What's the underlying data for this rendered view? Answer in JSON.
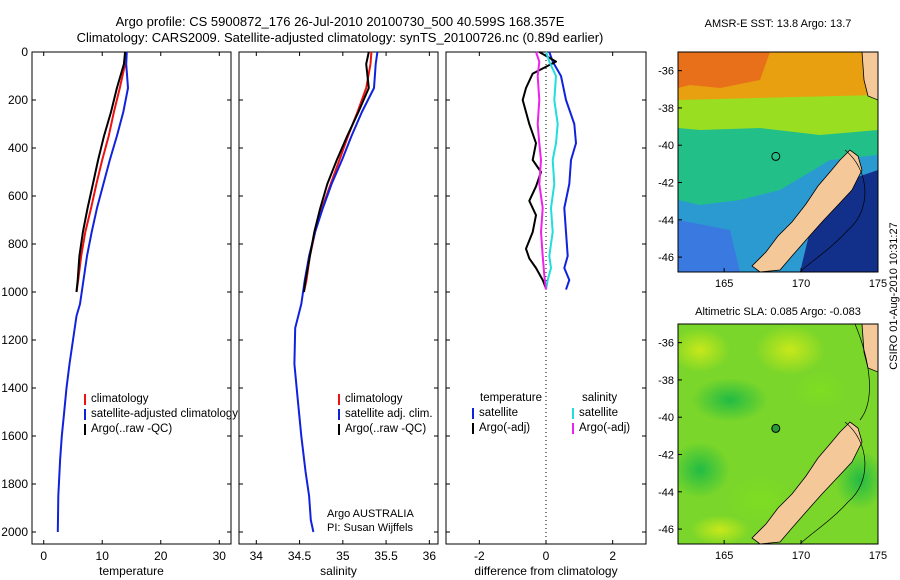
{
  "title": {
    "line1": "Argo profile: CS 5900872_176 26-Jul-2010 20100730_500 40.599S 168.357E",
    "line2": "Climatology: CARS2009. Satellite-adjusted climatology: synTS_20100726.nc (0.89d earlier)"
  },
  "colors": {
    "red": "#ee1111",
    "blue": "#1122dd",
    "black": "#000000",
    "cyan": "#22dddd",
    "magenta": "#ee22ee",
    "land": "#f5c89a"
  },
  "panels": {
    "temperature": {
      "xlabel": "temperature",
      "legend": [
        "climatology",
        "satellite-adjusted climatology",
        "Argo(..raw -QC)"
      ]
    },
    "salinity": {
      "xlabel": "salinity",
      "legend": [
        "climatology",
        "satellite adj. clim.",
        "Argo(..raw -QC)"
      ],
      "credit_line1": "Argo AUSTRALIA",
      "credit_line2": "PI: Susan Wijffels"
    },
    "difference": {
      "xlabel": "difference from climatology",
      "legend_left_header": "temperature",
      "legend_left": [
        "satellite",
        "Argo(-adj)"
      ],
      "legend_right_header": "salinity",
      "legend_right": [
        "satellite",
        "Argo(-adj)"
      ]
    }
  },
  "maps": {
    "sst_title": "AMSR-E SST: 13.8 Argo: 13.7",
    "sla_title": "Altimetric SLA: 0.085 Argo: -0.083",
    "lon_ticks": [
      "165",
      "170",
      "175"
    ],
    "lat_ticks": [
      "-36",
      "-38",
      "-40",
      "-42",
      "-44",
      "-46"
    ],
    "float_position": {
      "lon": 168.357,
      "lat": -40.599
    }
  },
  "stamp": "CSIRO 01-Aug-2010 10:31:27",
  "chart_data": [
    {
      "type": "line",
      "title": "",
      "xlabel": "temperature",
      "ylabel": "",
      "xlim": [
        -2,
        32
      ],
      "ylim": [
        2050,
        0
      ],
      "xticks": [
        0,
        10,
        20,
        30
      ],
      "yticks": [
        0,
        200,
        400,
        600,
        800,
        1000,
        1200,
        1400,
        1600,
        1800,
        2000
      ],
      "series": [
        {
          "name": "climatology",
          "color": "red",
          "x": [
            14.1,
            13.9,
            13.0,
            12.0,
            11.1,
            10.0,
            9.0,
            8.1,
            7.1,
            6.4,
            5.9,
            5.6
          ],
          "y": [
            0,
            50,
            150,
            250,
            350,
            450,
            550,
            650,
            750,
            850,
            950,
            1000
          ]
        },
        {
          "name": "satellite-adjusted climatology",
          "color": "blue",
          "x": [
            14.2,
            14.1,
            14.4,
            13.6,
            12.5,
            11.3,
            10.2,
            9.1,
            8.2,
            7.4,
            6.8,
            6.2,
            5.6,
            5.0,
            4.4,
            3.9,
            3.5,
            3.1,
            2.8,
            2.5,
            2.4
          ],
          "y": [
            0,
            50,
            150,
            250,
            350,
            450,
            550,
            650,
            750,
            850,
            950,
            1050,
            1100,
            1200,
            1300,
            1400,
            1500,
            1600,
            1700,
            1850,
            2000
          ]
        },
        {
          "name": "Argo(..raw -QC)",
          "color": "black",
          "x": [
            13.9,
            13.7,
            12.5,
            11.5,
            10.3,
            9.3,
            8.4,
            7.5,
            6.7,
            6.1,
            5.8,
            5.6
          ],
          "y": [
            0,
            50,
            150,
            250,
            350,
            450,
            550,
            650,
            750,
            850,
            950,
            1000
          ]
        }
      ]
    },
    {
      "type": "line",
      "title": "",
      "xlabel": "salinity",
      "ylabel": "",
      "xlim": [
        33.8,
        36.1
      ],
      "ylim": [
        2050,
        0
      ],
      "xticks": [
        34,
        34.5,
        35,
        35.5,
        36
      ],
      "series": [
        {
          "name": "climatology",
          "color": "red",
          "x": [
            35.33,
            35.32,
            35.27,
            35.17,
            35.06,
            34.96,
            34.86,
            34.76,
            34.68,
            34.62,
            34.58,
            34.55
          ],
          "y": [
            0,
            50,
            150,
            250,
            350,
            450,
            550,
            650,
            750,
            850,
            950,
            1000
          ]
        },
        {
          "name": "satellite adj. clim.",
          "color": "blue",
          "x": [
            35.4,
            35.38,
            35.36,
            35.22,
            35.1,
            34.99,
            34.87,
            34.77,
            34.68,
            34.61,
            34.56,
            34.52,
            34.45,
            34.44,
            34.48,
            34.52,
            34.57,
            34.61,
            34.63,
            34.66
          ],
          "y": [
            0,
            50,
            150,
            250,
            350,
            450,
            550,
            650,
            750,
            850,
            950,
            1050,
            1150,
            1300,
            1450,
            1600,
            1750,
            1850,
            1950,
            2000
          ]
        },
        {
          "name": "Argo(..raw -QC)",
          "color": "black",
          "x": [
            35.3,
            35.27,
            35.3,
            35.18,
            35.05,
            34.93,
            34.82,
            34.74,
            34.67,
            34.62,
            34.57,
            34.55
          ],
          "y": [
            0,
            50,
            150,
            250,
            350,
            450,
            550,
            650,
            750,
            850,
            950,
            1000
          ]
        }
      ]
    },
    {
      "type": "line",
      "title": "",
      "xlabel": "difference from climatology",
      "ylabel": "",
      "xlim": [
        -3,
        3
      ],
      "ylim": [
        2050,
        0
      ],
      "xticks": [
        -2,
        0,
        2
      ],
      "series": [
        {
          "name": "satellite",
          "color": "blue",
          "x": [
            0.1,
            0.2,
            0.45,
            0.6,
            0.85,
            0.9,
            0.75,
            0.7,
            0.55,
            0.6,
            0.65,
            0.55,
            0.7,
            0.6
          ],
          "y": [
            0,
            40,
            100,
            200,
            300,
            380,
            450,
            550,
            650,
            750,
            850,
            900,
            950,
            990
          ]
        },
        {
          "name": "Argo(-adj)",
          "color": "black",
          "x": [
            -0.2,
            0.3,
            -0.4,
            -0.6,
            -0.7,
            -0.5,
            -0.3,
            -0.4,
            -0.15,
            -0.3,
            -0.5,
            -0.3,
            -0.4,
            -0.6,
            -0.5,
            -0.3,
            -0.1,
            0.0
          ],
          "y": [
            0,
            40,
            90,
            150,
            200,
            300,
            380,
            450,
            500,
            560,
            620,
            680,
            750,
            820,
            860,
            900,
            950,
            985
          ]
        },
        {
          "name": "satellite",
          "color": "cyan",
          "x": [
            0.0,
            0.1,
            0.3,
            0.25,
            0.35,
            0.3,
            0.2,
            0.25,
            0.15,
            0.2,
            0.1,
            0.15,
            0.05,
            0.0
          ],
          "y": [
            0,
            40,
            100,
            200,
            300,
            380,
            450,
            550,
            650,
            750,
            850,
            900,
            950,
            990
          ]
        },
        {
          "name": "Argo(-adj)",
          "color": "magenta",
          "x": [
            -0.3,
            -0.2,
            -0.25,
            -0.2,
            -0.25,
            -0.2,
            -0.15,
            -0.2,
            -0.1,
            -0.15,
            -0.1,
            -0.05,
            0.0
          ],
          "y": [
            0,
            40,
            100,
            200,
            300,
            380,
            450,
            550,
            650,
            750,
            850,
            930,
            990
          ]
        }
      ]
    }
  ]
}
